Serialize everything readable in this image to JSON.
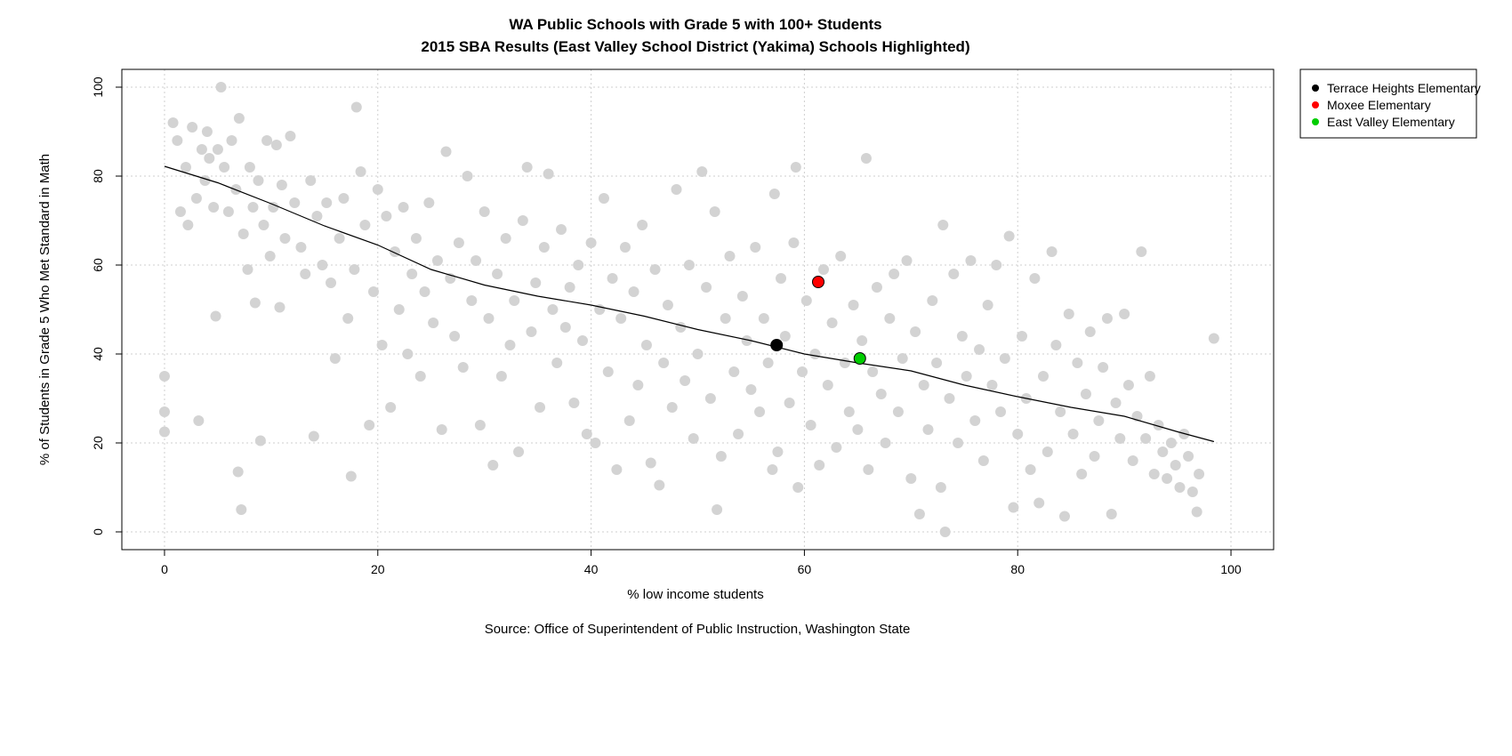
{
  "chart_data": {
    "type": "scatter",
    "title": "WA Public Schools with Grade 5 with 100+ Students",
    "subtitle": "2015 SBA Results (East Valley School District (Yakima) Schools Highlighted)",
    "xlabel": "% low income students",
    "ylabel": "% of Students in Grade 5 Who Met Standard in Math",
    "source": "Source: Office of Superintendent of Public Instruction, Washington State",
    "xlim": [
      -4,
      104
    ],
    "ylim": [
      -4,
      104
    ],
    "x_ticks": [
      0,
      20,
      40,
      60,
      80,
      100
    ],
    "y_ticks": [
      0,
      20,
      40,
      60,
      80,
      100
    ],
    "grid": true,
    "legend_position": "outside-top-right",
    "background_point_color": "#d3d3d3",
    "background_points": [
      [
        0,
        35
      ],
      [
        0,
        27
      ],
      [
        0,
        22.5
      ],
      [
        0.8,
        92
      ],
      [
        1.2,
        88
      ],
      [
        1.5,
        72
      ],
      [
        2,
        82
      ],
      [
        2.2,
        69
      ],
      [
        2.6,
        91
      ],
      [
        3,
        75
      ],
      [
        3.2,
        25
      ],
      [
        3.5,
        86
      ],
      [
        3.8,
        79
      ],
      [
        4,
        90
      ],
      [
        4.2,
        84
      ],
      [
        4.6,
        73
      ],
      [
        4.8,
        48.5
      ],
      [
        5,
        86
      ],
      [
        5.3,
        100
      ],
      [
        5.6,
        82
      ],
      [
        6,
        72
      ],
      [
        6.3,
        88
      ],
      [
        6.7,
        77
      ],
      [
        6.9,
        13.5
      ],
      [
        7,
        93
      ],
      [
        7.2,
        5
      ],
      [
        7.4,
        67
      ],
      [
        7.8,
        59
      ],
      [
        8,
        82
      ],
      [
        8.3,
        73
      ],
      [
        8.5,
        51.5
      ],
      [
        8.8,
        79
      ],
      [
        9,
        20.5
      ],
      [
        9.3,
        69
      ],
      [
        9.6,
        88
      ],
      [
        9.9,
        62
      ],
      [
        10.2,
        73
      ],
      [
        10.5,
        87
      ],
      [
        10.8,
        50.5
      ],
      [
        11,
        78
      ],
      [
        11.3,
        66
      ],
      [
        11.8,
        89
      ],
      [
        12.2,
        74
      ],
      [
        12.8,
        64
      ],
      [
        13.2,
        58
      ],
      [
        13.7,
        79
      ],
      [
        14,
        21.5
      ],
      [
        14.3,
        71
      ],
      [
        14.8,
        60
      ],
      [
        15.2,
        74
      ],
      [
        15.6,
        56
      ],
      [
        16,
        39
      ],
      [
        16.4,
        66
      ],
      [
        16.8,
        75
      ],
      [
        17.2,
        48
      ],
      [
        17.5,
        12.5
      ],
      [
        17.8,
        59
      ],
      [
        18,
        95.5
      ],
      [
        18.4,
        81
      ],
      [
        18.8,
        69
      ],
      [
        19.2,
        24
      ],
      [
        19.6,
        54
      ],
      [
        20,
        77
      ],
      [
        20.4,
        42
      ],
      [
        20.8,
        71
      ],
      [
        21.2,
        28
      ],
      [
        21.6,
        63
      ],
      [
        22,
        50
      ],
      [
        22.4,
        73
      ],
      [
        22.8,
        40
      ],
      [
        23.2,
        58
      ],
      [
        23.6,
        66
      ],
      [
        24,
        35
      ],
      [
        24.4,
        54
      ],
      [
        24.8,
        74
      ],
      [
        25.2,
        47
      ],
      [
        25.6,
        61
      ],
      [
        26,
        23
      ],
      [
        26.4,
        85.5
      ],
      [
        26.8,
        57
      ],
      [
        27.2,
        44
      ],
      [
        27.6,
        65
      ],
      [
        28,
        37
      ],
      [
        28.4,
        80
      ],
      [
        28.8,
        52
      ],
      [
        29.2,
        61
      ],
      [
        29.6,
        24
      ],
      [
        30,
        72
      ],
      [
        30.4,
        48
      ],
      [
        30.8,
        15
      ],
      [
        31.2,
        58
      ],
      [
        31.6,
        35
      ],
      [
        32,
        66
      ],
      [
        32.4,
        42
      ],
      [
        32.8,
        52
      ],
      [
        33.2,
        18
      ],
      [
        33.6,
        70
      ],
      [
        34,
        82
      ],
      [
        34.4,
        45
      ],
      [
        34.8,
        56
      ],
      [
        35.2,
        28
      ],
      [
        35.6,
        64
      ],
      [
        36,
        80.5
      ],
      [
        36.4,
        50
      ],
      [
        36.8,
        38
      ],
      [
        37.2,
        68
      ],
      [
        37.6,
        46
      ],
      [
        38,
        55
      ],
      [
        38.4,
        29
      ],
      [
        38.8,
        60
      ],
      [
        39.2,
        43
      ],
      [
        39.6,
        22
      ],
      [
        40,
        65
      ],
      [
        40.4,
        20
      ],
      [
        40.8,
        50
      ],
      [
        41.2,
        75
      ],
      [
        41.6,
        36
      ],
      [
        42,
        57
      ],
      [
        42.4,
        14
      ],
      [
        42.8,
        48
      ],
      [
        43.2,
        64
      ],
      [
        43.6,
        25
      ],
      [
        44,
        54
      ],
      [
        44.4,
        33
      ],
      [
        44.8,
        69
      ],
      [
        45.2,
        42
      ],
      [
        45.6,
        15.5
      ],
      [
        46,
        59
      ],
      [
        46.4,
        10.5
      ],
      [
        46.8,
        38
      ],
      [
        47.2,
        51
      ],
      [
        47.6,
        28
      ],
      [
        48,
        77
      ],
      [
        48.4,
        46
      ],
      [
        48.8,
        34
      ],
      [
        49.2,
        60
      ],
      [
        49.6,
        21
      ],
      [
        50,
        40
      ],
      [
        50.4,
        81
      ],
      [
        50.8,
        55
      ],
      [
        51.2,
        30
      ],
      [
        51.6,
        72
      ],
      [
        51.8,
        5
      ],
      [
        52.2,
        17
      ],
      [
        52.6,
        48
      ],
      [
        53,
        62
      ],
      [
        53.4,
        36
      ],
      [
        53.8,
        22
      ],
      [
        54.2,
        53
      ],
      [
        54.6,
        43
      ],
      [
        55,
        32
      ],
      [
        55.4,
        64
      ],
      [
        55.8,
        27
      ],
      [
        56.2,
        48
      ],
      [
        56.6,
        38
      ],
      [
        57,
        14
      ],
      [
        57.2,
        76
      ],
      [
        57.5,
        18
      ],
      [
        57.8,
        57
      ],
      [
        58.2,
        44
      ],
      [
        58.6,
        29
      ],
      [
        59,
        65
      ],
      [
        59.2,
        82
      ],
      [
        59.4,
        10
      ],
      [
        59.8,
        36
      ],
      [
        60.2,
        52
      ],
      [
        60.6,
        24
      ],
      [
        61,
        40
      ],
      [
        61.4,
        15
      ],
      [
        61.8,
        59
      ],
      [
        62.2,
        33
      ],
      [
        62.6,
        47
      ],
      [
        63,
        19
      ],
      [
        63.4,
        62
      ],
      [
        63.8,
        38
      ],
      [
        64.2,
        27
      ],
      [
        64.6,
        51
      ],
      [
        65,
        23
      ],
      [
        65.4,
        43
      ],
      [
        65.8,
        84
      ],
      [
        66,
        14
      ],
      [
        66.4,
        36
      ],
      [
        66.8,
        55
      ],
      [
        67.2,
        31
      ],
      [
        67.6,
        20
      ],
      [
        68,
        48
      ],
      [
        68.4,
        58
      ],
      [
        68.8,
        27
      ],
      [
        69.2,
        39
      ],
      [
        69.6,
        61
      ],
      [
        70,
        12
      ],
      [
        70.4,
        45
      ],
      [
        70.8,
        4
      ],
      [
        71.2,
        33
      ],
      [
        71.6,
        23
      ],
      [
        72,
        52
      ],
      [
        72.4,
        38
      ],
      [
        72.8,
        10
      ],
      [
        73,
        69
      ],
      [
        73.2,
        0
      ],
      [
        73.6,
        30
      ],
      [
        74,
        58
      ],
      [
        74.4,
        20
      ],
      [
        74.8,
        44
      ],
      [
        75.2,
        35
      ],
      [
        75.6,
        61
      ],
      [
        76,
        25
      ],
      [
        76.4,
        41
      ],
      [
        76.8,
        16
      ],
      [
        77.2,
        51
      ],
      [
        77.6,
        33
      ],
      [
        78,
        60
      ],
      [
        78.4,
        27
      ],
      [
        78.8,
        39
      ],
      [
        79.2,
        66.5
      ],
      [
        79.6,
        5.5
      ],
      [
        80,
        22
      ],
      [
        80.4,
        44
      ],
      [
        80.8,
        30
      ],
      [
        81.2,
        14
      ],
      [
        81.6,
        57
      ],
      [
        82,
        6.5
      ],
      [
        82.4,
        35
      ],
      [
        82.8,
        18
      ],
      [
        83.2,
        63
      ],
      [
        83.6,
        42
      ],
      [
        84,
        27
      ],
      [
        84.4,
        3.5
      ],
      [
        84.8,
        49
      ],
      [
        85.2,
        22
      ],
      [
        85.6,
        38
      ],
      [
        86,
        13
      ],
      [
        86.4,
        31
      ],
      [
        86.8,
        45
      ],
      [
        87.2,
        17
      ],
      [
        87.6,
        25
      ],
      [
        88,
        37
      ],
      [
        88.4,
        48
      ],
      [
        88.8,
        4
      ],
      [
        89.2,
        29
      ],
      [
        89.6,
        21
      ],
      [
        90,
        49
      ],
      [
        90.4,
        33
      ],
      [
        90.8,
        16
      ],
      [
        91.2,
        26
      ],
      [
        91.6,
        63
      ],
      [
        92,
        21
      ],
      [
        92.4,
        35
      ],
      [
        92.8,
        13
      ],
      [
        93.2,
        24
      ],
      [
        93.6,
        18
      ],
      [
        94,
        12
      ],
      [
        94.4,
        20
      ],
      [
        94.8,
        15
      ],
      [
        95.2,
        10
      ],
      [
        95.6,
        22
      ],
      [
        96,
        17
      ],
      [
        96.4,
        9
      ],
      [
        96.8,
        4.5
      ],
      [
        97,
        13
      ],
      [
        98.4,
        43.5
      ]
    ],
    "highlighted_points": [
      {
        "name": "Terrace Heights Elementary",
        "x": 57.4,
        "y": 42,
        "color": "#000000"
      },
      {
        "name": "Moxee Elementary",
        "x": 61.3,
        "y": 56.2,
        "color": "#ff0000"
      },
      {
        "name": "East Valley Elementary",
        "x": 65.2,
        "y": 39,
        "color": "#00cd00"
      }
    ],
    "trend_line": [
      [
        0,
        82.2
      ],
      [
        5,
        78.5
      ],
      [
        10,
        73.8
      ],
      [
        15,
        68.8
      ],
      [
        20,
        64.5
      ],
      [
        25,
        59
      ],
      [
        30,
        55.5
      ],
      [
        35,
        53
      ],
      [
        40,
        51
      ],
      [
        45,
        48.5
      ],
      [
        50,
        45.5
      ],
      [
        55,
        43
      ],
      [
        60,
        40
      ],
      [
        65,
        38
      ],
      [
        70,
        36.2
      ],
      [
        75,
        33
      ],
      [
        80,
        30.4
      ],
      [
        85,
        28
      ],
      [
        90,
        26
      ],
      [
        95,
        22.5
      ],
      [
        98.4,
        20.3
      ]
    ]
  }
}
